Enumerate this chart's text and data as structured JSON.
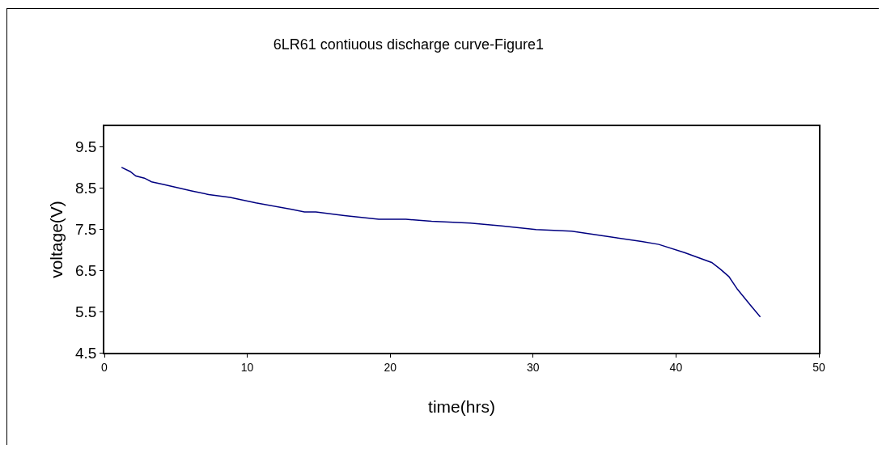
{
  "chart_data": {
    "type": "line",
    "title": "6LR61 contiuous discharge curve-Figure1",
    "xlabel": "time(hrs)",
    "ylabel": "voltage(V)",
    "xlim": [
      0,
      50
    ],
    "xticks": [
      0,
      10,
      20,
      30,
      40,
      50
    ],
    "ylim": [
      4.5,
      10
    ],
    "yticks": [
      4.5,
      5.5,
      6.5,
      7.5,
      8.5,
      9.5
    ],
    "grid": false,
    "legend": false,
    "marker": "none",
    "line_style": "solid",
    "series": [
      {
        "color": "#000080",
        "x": [
          1.2,
          1.8,
          2.2,
          2.8,
          3.3,
          4.2,
          6.1,
          7.3,
          8.8,
          10.6,
          13.1,
          14.0,
          14.8,
          16.8,
          19.2,
          21.1,
          22.9,
          25.6,
          27.8,
          30.2,
          32.7,
          35.1,
          37.6,
          38.8,
          40.6,
          42.5,
          43.1,
          43.7,
          44.3,
          45.2,
          45.9
        ],
        "values": [
          9.0,
          8.9,
          8.79,
          8.74,
          8.65,
          8.58,
          8.43,
          8.34,
          8.27,
          8.14,
          7.98,
          7.92,
          7.92,
          7.83,
          7.74,
          7.74,
          7.69,
          7.65,
          7.58,
          7.49,
          7.45,
          7.33,
          7.2,
          7.13,
          6.93,
          6.69,
          6.53,
          6.35,
          6.04,
          5.66,
          5.37
        ]
      }
    ]
  }
}
